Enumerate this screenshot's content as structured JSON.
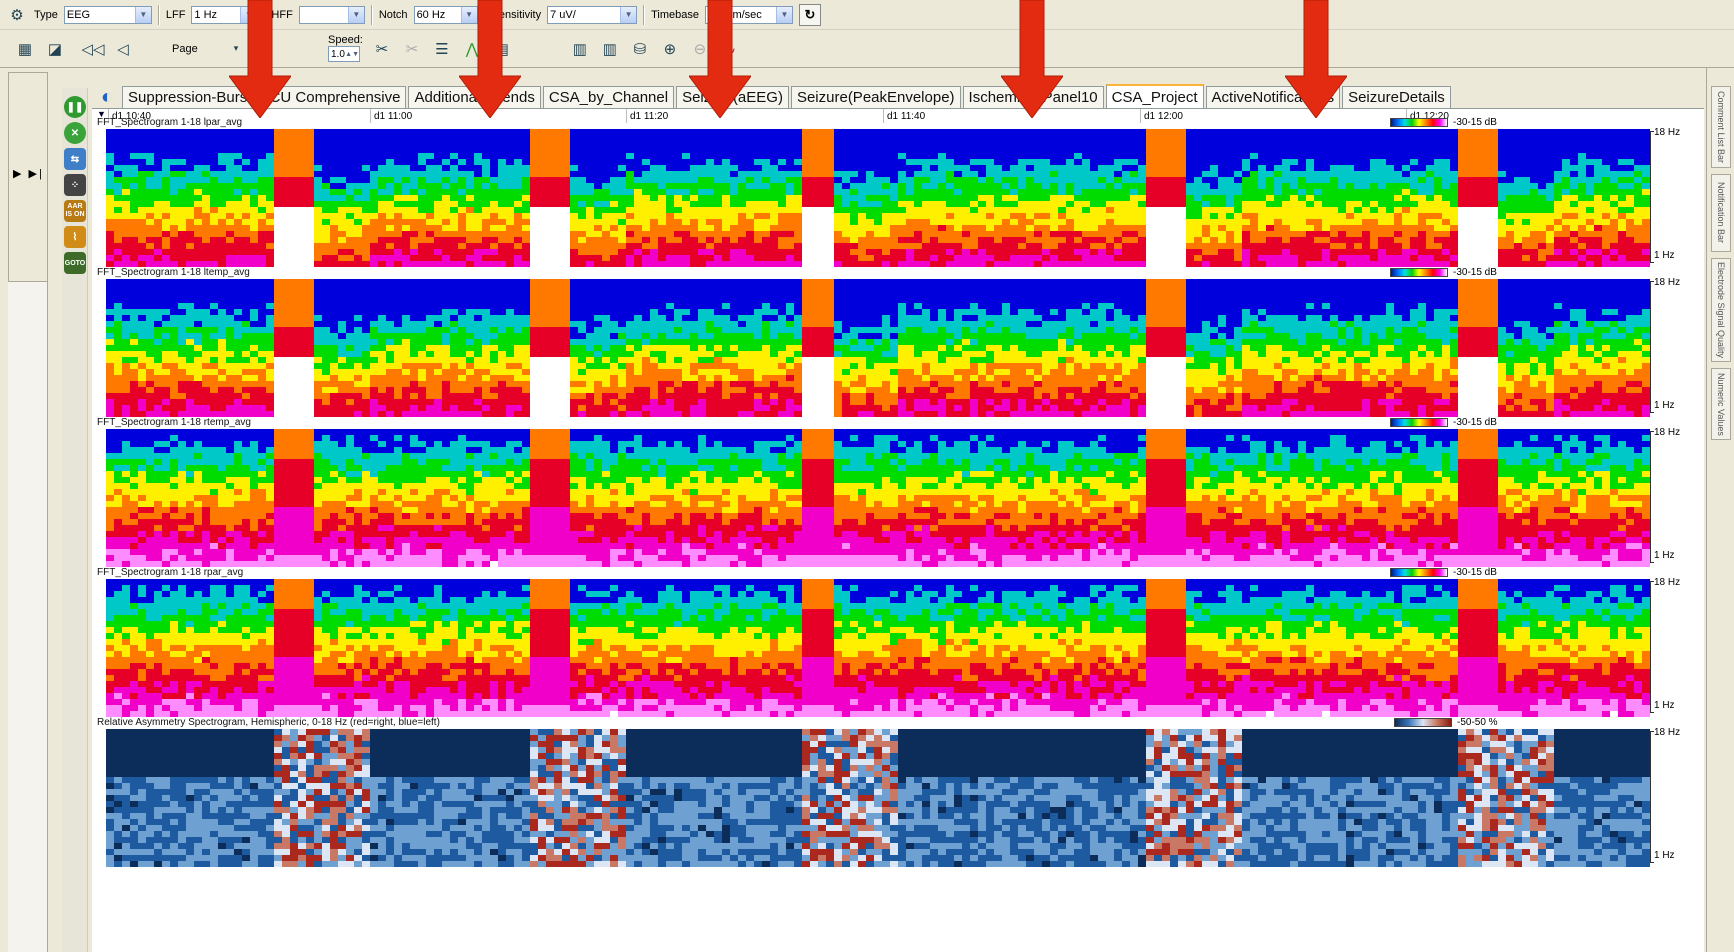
{
  "toolbar": {
    "type_label": "Type",
    "type_value": "EEG",
    "lff_label": "LFF",
    "lff_value": "1 Hz",
    "hff_label": "HFF",
    "hff_value": "",
    "notch_label": "Notch",
    "notch_value": "60 Hz",
    "sensitivity_label": "Sensitivity",
    "sensitivity_value": "7 uV/",
    "timebase_label": "Timebase",
    "timebase_value": "30 mm/sec",
    "page_label": "Page",
    "speed_label": "Speed:",
    "speed_value": "1.0"
  },
  "tabs": [
    {
      "label": "Suppression-Burst",
      "active": false
    },
    {
      "label": "ICU Comprehensive",
      "active": false
    },
    {
      "label": "Additional_Trends",
      "active": false
    },
    {
      "label": "CSA_by_Channel",
      "active": false
    },
    {
      "label": "Seizure(aEEG)",
      "active": false
    },
    {
      "label": "Seizure(PeakEnvelope)",
      "active": false
    },
    {
      "label": "Ischemia",
      "active": false
    },
    {
      "label": "Panel10",
      "active": false
    },
    {
      "label": "CSA_Project",
      "active": true
    },
    {
      "label": "ActiveNotifications",
      "active": false
    },
    {
      "label": "SeizureDetails",
      "active": false
    }
  ],
  "time_axis": [
    "d1 10:40",
    "d1 11:00",
    "d1 11:20",
    "d1 11:40",
    "d1 12:00",
    "d1 12:20"
  ],
  "panels": [
    {
      "title": "FFT_Spectrogram 1-18 lpar_avg",
      "range": "-30-15 dB",
      "hz_top": "18 Hz",
      "hz_bottom": "1 Hz",
      "scale": "spectral"
    },
    {
      "title": "FFT_Spectrogram 1-18 ltemp_avg",
      "range": "-30-15 dB",
      "hz_top": "18 Hz",
      "hz_bottom": "1 Hz",
      "scale": "spectral"
    },
    {
      "title": "FFT_Spectrogram 1-18 rtemp_avg",
      "range": "-30-15 dB",
      "hz_top": "18 Hz",
      "hz_bottom": "1 Hz",
      "scale": "spectral"
    },
    {
      "title": "FFT_Spectrogram 1-18 rpar_avg",
      "range": "-30-15 dB",
      "hz_top": "18 Hz",
      "hz_bottom": "1 Hz",
      "scale": "spectral"
    },
    {
      "title": "Relative Asymmetry Spectrogram, Hemispheric, 0-18 Hz (red=right, blue=left)",
      "range": "-50-50 %",
      "hz_top": "18 Hz",
      "hz_bottom": "1 Hz",
      "scale": "diverging"
    }
  ],
  "right_sidebar": [
    "Comment List Bar",
    "Notification Bar",
    "Electrode Signal Quality",
    "Numeric Values"
  ],
  "left_icons": [
    "pause-icon",
    "close-icon",
    "swap-icon",
    "grid-icon",
    "aar-icon",
    "waveform-icon",
    "goto-icon"
  ],
  "left_icon_text": {
    "aar": "AAR IS ON",
    "goto": "GOTO"
  },
  "arrow_color": "#e32b12",
  "arrow_count": 5
}
